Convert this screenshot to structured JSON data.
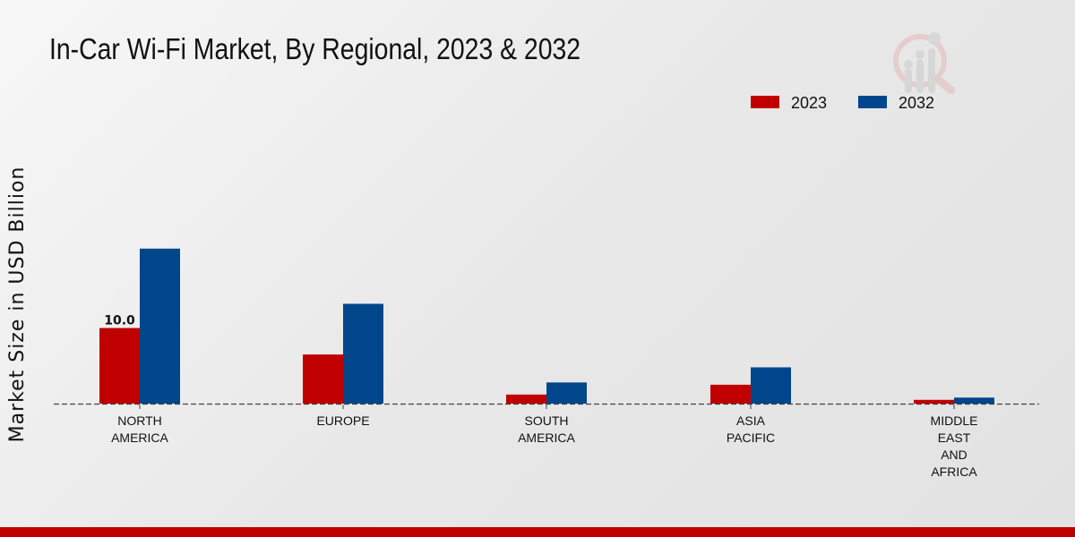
{
  "title": "In-Car Wi-Fi Market, By Regional, 2023 & 2032",
  "chart_data": {
    "type": "bar",
    "title": "In-Car Wi-Fi Market, By Regional, 2023 & 2032",
    "xlabel": "",
    "ylabel": "Market Size in USD Billion",
    "categories": [
      [
        "NORTH",
        "AMERICA"
      ],
      [
        "EUROPE"
      ],
      [
        "SOUTH",
        "AMERICA"
      ],
      [
        "ASIA",
        "PACIFIC"
      ],
      [
        "MIDDLE",
        "EAST",
        "AND",
        "AFRICA"
      ]
    ],
    "series": [
      {
        "name": "2023",
        "color": "#c00000",
        "values": [
          10.0,
          6.5,
          1.2,
          2.5,
          0.5
        ]
      },
      {
        "name": "2032",
        "color": "#00468b",
        "values": [
          20.5,
          13.2,
          2.8,
          4.8,
          0.8
        ]
      }
    ],
    "data_labels": [
      {
        "series": 0,
        "index": 0,
        "text": "10.0"
      }
    ],
    "ylim": [
      0,
      24
    ],
    "grid": false,
    "legend": "top-right"
  }
}
